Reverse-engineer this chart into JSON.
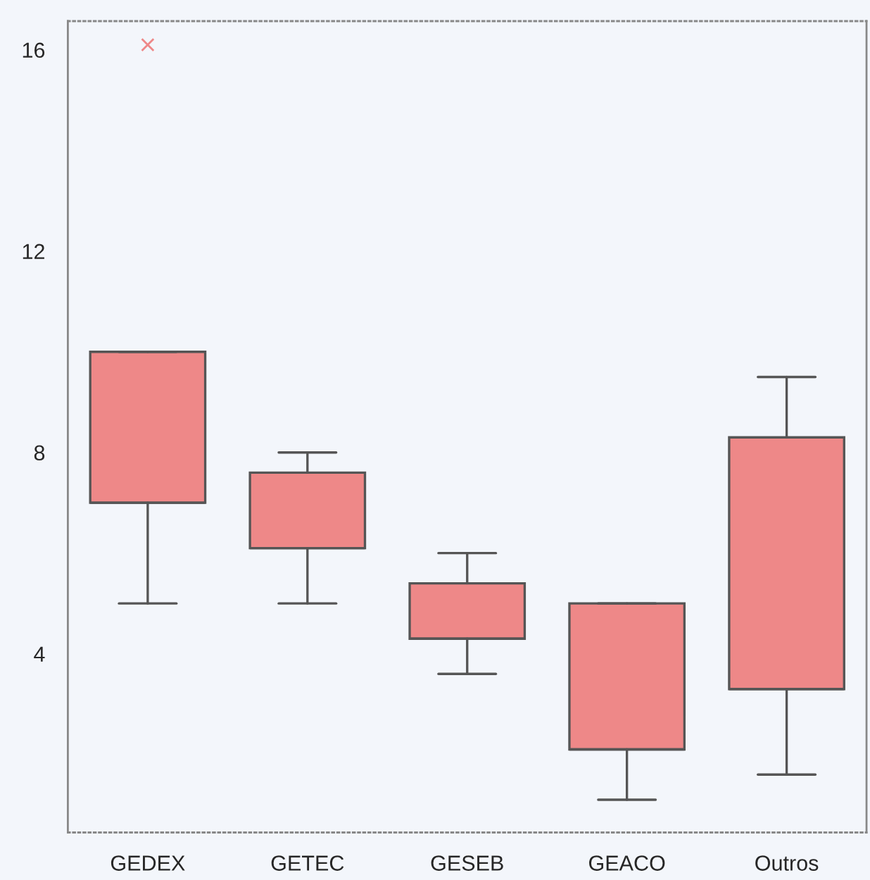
{
  "chart_data": {
    "type": "box",
    "categories": [
      "GEDEX",
      "GETEC",
      "GESEB",
      "GEACO",
      "Outros"
    ],
    "boxes": [
      {
        "low": 5,
        "q1": 7,
        "median": 7,
        "q3": 10,
        "high": 10,
        "outliers": [
          16.1
        ]
      },
      {
        "low": 5,
        "q1": 6.1,
        "median": 6.1,
        "q3": 7.6,
        "high": 8
      },
      {
        "low": 3.6,
        "q1": 4.3,
        "median": 4.3,
        "q3": 5.4,
        "high": 6
      },
      {
        "low": 1.1,
        "q1": 2.1,
        "median": 2.1,
        "q3": 5,
        "high": 5
      },
      {
        "low": 1.6,
        "q1": 3.3,
        "median": 3.3,
        "q3": 8.3,
        "high": 9.5
      }
    ],
    "color": "#ee8888",
    "ylim": [
      0.45,
      16.57
    ],
    "yticks": [
      4,
      8,
      12,
      16
    ],
    "grid": false
  }
}
